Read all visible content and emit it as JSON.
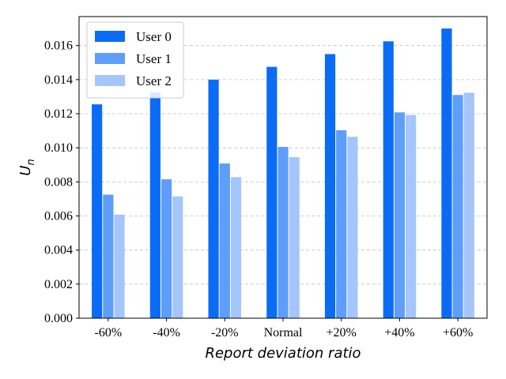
{
  "chart_data": {
    "type": "bar",
    "title": "",
    "xlabel": "Report deviation ratio",
    "ylabel_base": "U",
    "ylabel_sub": "n",
    "categories": [
      "-60%",
      "-40%",
      "-20%",
      "Normal",
      "+20%",
      "+40%",
      "+60%"
    ],
    "series": [
      {
        "name": "User 0",
        "color": "#0a6cf5",
        "values": [
          0.01255,
          0.01325,
          0.014,
          0.01475,
          0.0155,
          0.01625,
          0.017
        ]
      },
      {
        "name": "User 1",
        "color": "#5e9dfa",
        "values": [
          0.00725,
          0.00815,
          0.00908,
          0.01005,
          0.01103,
          0.01208,
          0.0131
        ]
      },
      {
        "name": "User 2",
        "color": "#a4c6fd",
        "values": [
          0.00608,
          0.00715,
          0.00828,
          0.00945,
          0.01065,
          0.01192,
          0.01323
        ]
      }
    ],
    "ylim": [
      0,
      0.0177
    ],
    "yticks": [
      "0.000",
      "0.002",
      "0.004",
      "0.006",
      "0.008",
      "0.010",
      "0.012",
      "0.014",
      "0.016"
    ],
    "grid": "horizontal dashed",
    "legend_position": "top-left"
  }
}
